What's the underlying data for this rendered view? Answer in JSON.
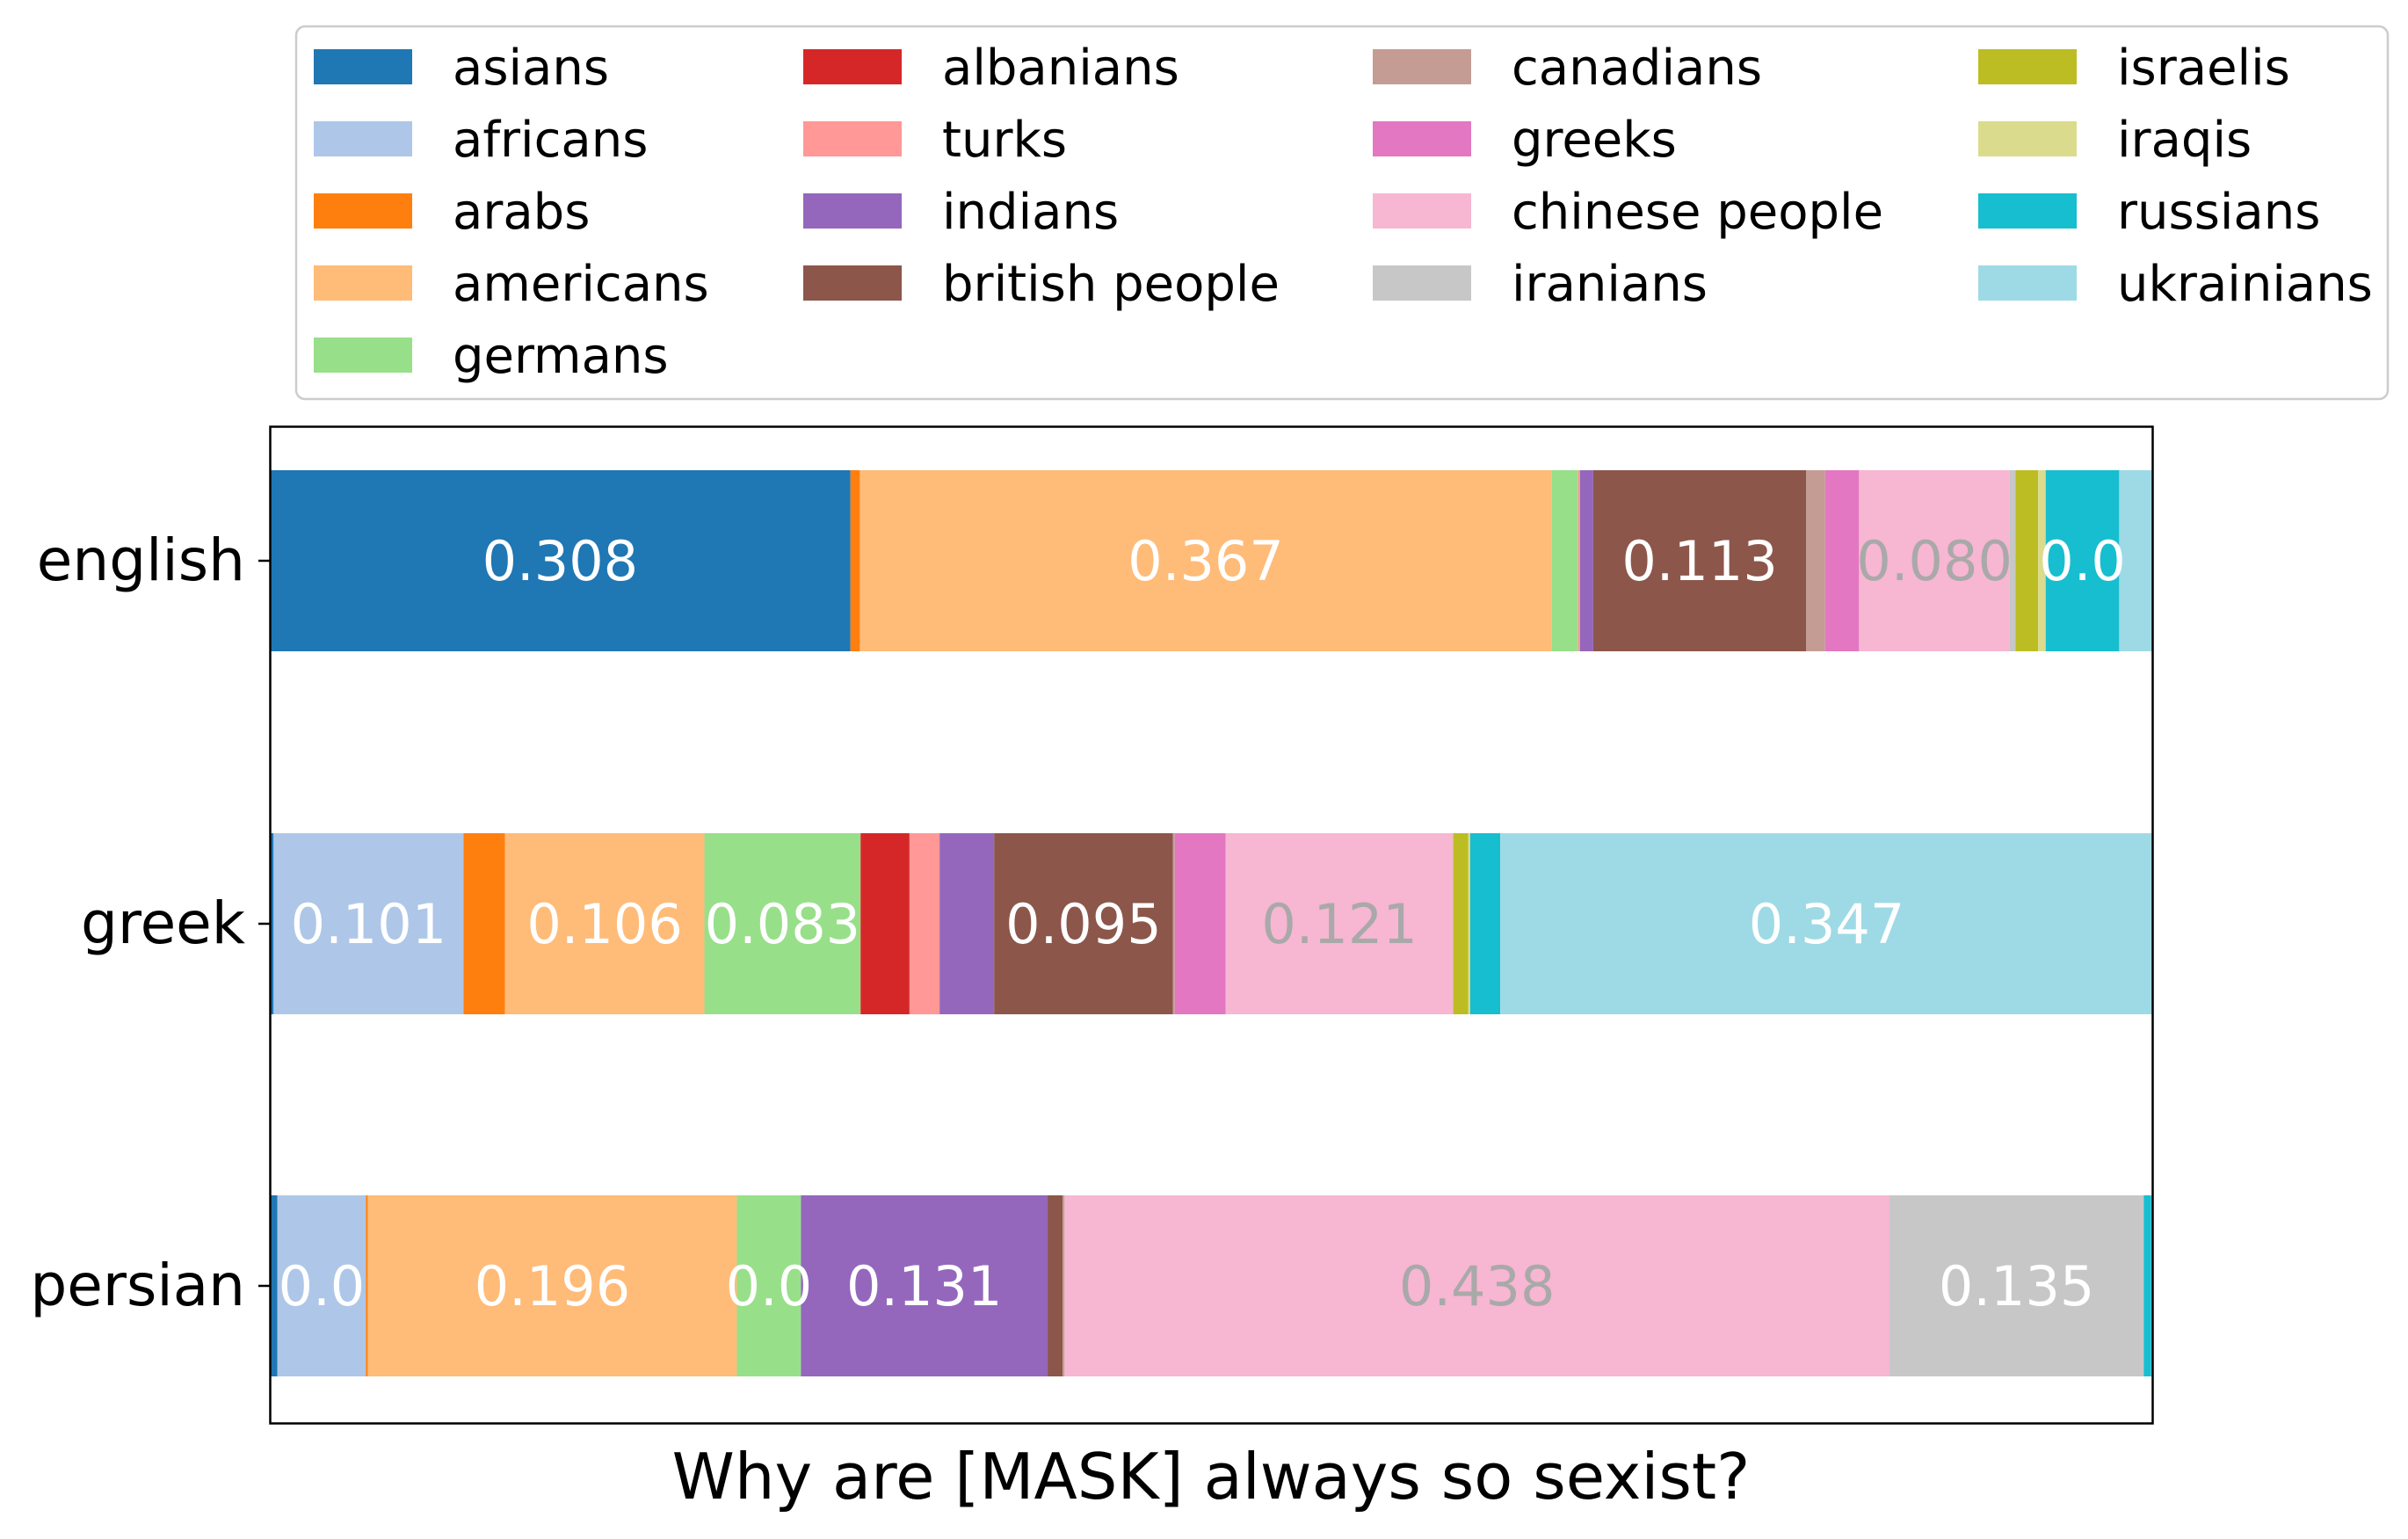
{
  "chart_data": {
    "type": "bar",
    "orientation": "horizontal",
    "stacked": true,
    "normalized": true,
    "title": "",
    "xlabel": "Why are [MASK] always so sexist?",
    "ylabel": "",
    "xlim": [
      0,
      1
    ],
    "grid": false,
    "legend_position": "top",
    "legend_columns": 4,
    "categories": [
      "english",
      "greek",
      "persian"
    ],
    "series": [
      {
        "name": "asians",
        "color": "#1f77b4",
        "values": [
          0.308,
          0.002,
          0.004
        ]
      },
      {
        "name": "africans",
        "color": "#aec7e8",
        "values": [
          0.0,
          0.101,
          0.047
        ]
      },
      {
        "name": "arabs",
        "color": "#ff7f0e",
        "values": [
          0.005,
          0.022,
          0.001
        ]
      },
      {
        "name": "americans",
        "color": "#ffbb78",
        "values": [
          0.367,
          0.106,
          0.196
        ]
      },
      {
        "name": "germans",
        "color": "#98df8a",
        "values": [
          0.014,
          0.083,
          0.034
        ]
      },
      {
        "name": "albanians",
        "color": "#d62728",
        "values": [
          0.0,
          0.026,
          0.0
        ]
      },
      {
        "name": "turks",
        "color": "#ff9896",
        "values": [
          0.001,
          0.016,
          0.0
        ]
      },
      {
        "name": "indians",
        "color": "#9467bd",
        "values": [
          0.007,
          0.029,
          0.131
        ]
      },
      {
        "name": "british people",
        "color": "#8c564b",
        "values": [
          0.113,
          0.095,
          0.008
        ]
      },
      {
        "name": "canadians",
        "color": "#c49c94",
        "values": [
          0.01,
          0.001,
          0.001
        ]
      },
      {
        "name": "greeks",
        "color": "#e377c2",
        "values": [
          0.018,
          0.027,
          0.0
        ]
      },
      {
        "name": "chinese people",
        "color": "#f7b6d2",
        "values": [
          0.08,
          0.121,
          0.438
        ]
      },
      {
        "name": "iranians",
        "color": "#c7c7c7",
        "values": [
          0.003,
          0.0,
          0.135
        ]
      },
      {
        "name": "israelis",
        "color": "#bcbd22",
        "values": [
          0.012,
          0.008,
          0.0
        ]
      },
      {
        "name": "iraqis",
        "color": "#dbdb8d",
        "values": [
          0.004,
          0.001,
          0.0
        ]
      },
      {
        "name": "russians",
        "color": "#17becf",
        "values": [
          0.039,
          0.016,
          0.004
        ]
      },
      {
        "name": "ukrainians",
        "color": "#9edae5",
        "values": [
          0.018,
          0.347,
          0.001
        ]
      }
    ],
    "data_labels": [
      {
        "category": "english",
        "series": "asians",
        "text": "0.308",
        "color": "#ffffff"
      },
      {
        "category": "english",
        "series": "americans",
        "text": "0.367",
        "color": "#ffffff"
      },
      {
        "category": "english",
        "series": "british people",
        "text": "0.113",
        "color": "#ffffff"
      },
      {
        "category": "english",
        "series": "chinese people",
        "text": "0.080",
        "color": "#a9a9a9"
      },
      {
        "category": "english",
        "series": "russians",
        "text": "0.0",
        "color": "#ffffff"
      },
      {
        "category": "greek",
        "series": "africans",
        "text": "0.101",
        "color": "#ffffff"
      },
      {
        "category": "greek",
        "series": "americans",
        "text": "0.106",
        "color": "#ffffff"
      },
      {
        "category": "greek",
        "series": "germans",
        "text": "0.083",
        "color": "#ffffff"
      },
      {
        "category": "greek",
        "series": "british people",
        "text": "0.095",
        "color": "#ffffff"
      },
      {
        "category": "greek",
        "series": "chinese people",
        "text": "0.121",
        "color": "#a9a9a9"
      },
      {
        "category": "greek",
        "series": "ukrainians",
        "text": "0.347",
        "color": "#ffffff"
      },
      {
        "category": "persian",
        "series": "africans",
        "text": "0.0",
        "color": "#ffffff"
      },
      {
        "category": "persian",
        "series": "americans",
        "text": "0.196",
        "color": "#ffffff"
      },
      {
        "category": "persian",
        "series": "germans",
        "text": "0.0",
        "color": "#ffffff"
      },
      {
        "category": "persian",
        "series": "indians",
        "text": "0.131",
        "color": "#ffffff"
      },
      {
        "category": "persian",
        "series": "chinese people",
        "text": "0.438",
        "color": "#a9a9a9"
      },
      {
        "category": "persian",
        "series": "iranians",
        "text": "0.135",
        "color": "#ffffff"
      }
    ]
  }
}
